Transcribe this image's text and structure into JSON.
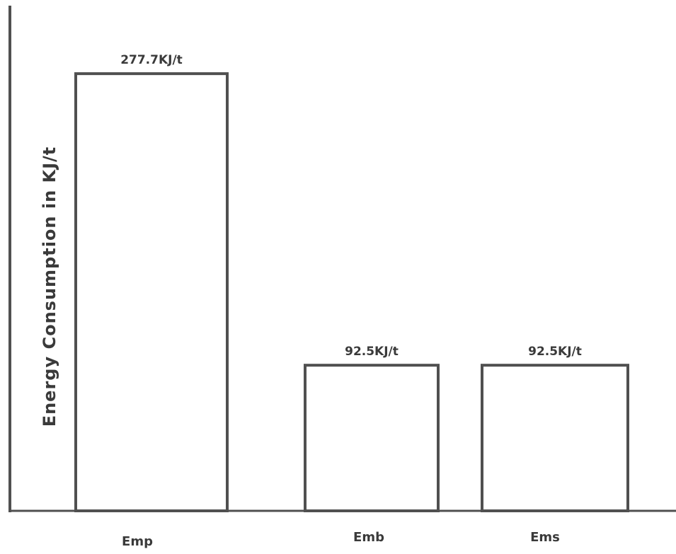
{
  "chart_data": {
    "type": "bar",
    "title": "",
    "xlabel": "",
    "ylabel": "Energy Consumption in KJ/t",
    "categories": [
      "Emp",
      "Emb",
      "Ems"
    ],
    "values": [
      277.7,
      92.5,
      92.5
    ],
    "data_labels": [
      "277.7KJ/t",
      "92.5KJ/t",
      "92.5KJ/t"
    ],
    "unit": "KJ/t",
    "ylim": [
      0,
      320
    ],
    "grid": false,
    "legend": "none",
    "bar_fill": "#ffffff",
    "bar_stroke": "#505050",
    "axis_color": "#505050",
    "text_color": "#3a3a3a"
  }
}
